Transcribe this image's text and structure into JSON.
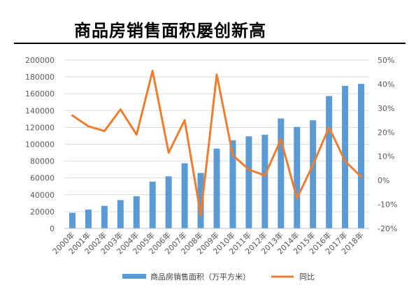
{
  "header": {
    "title": "商品房销售面积屡创新高"
  },
  "colors": {
    "bar": "#5B9BD5",
    "line": "#ED7D31",
    "grid": "#D9D9D9",
    "axis": "#BFBFBF"
  },
  "chart_data": {
    "type": "bar",
    "categories": [
      "2000年",
      "2001年",
      "2002年",
      "2003年",
      "2004年",
      "2005年",
      "2006年",
      "2007年",
      "2008年",
      "2009年",
      "2010年",
      "2011年",
      "2012年",
      "2013年",
      "2014年",
      "2015年",
      "2016年",
      "2017年",
      "2018年"
    ],
    "series": [
      {
        "name": "商品房销售面积（万平方米）",
        "type": "bar",
        "axis": "left",
        "values": [
          18600,
          22400,
          26800,
          33700,
          38200,
          55500,
          61900,
          77400,
          65900,
          94800,
          104800,
          109400,
          111300,
          130600,
          120600,
          128500,
          157300,
          169400,
          171700
        ]
      },
      {
        "name": "同比",
        "type": "line",
        "axis": "right",
        "unit": "%",
        "values": [
          27.0,
          22.5,
          20.5,
          29.5,
          19.0,
          45.5,
          11.5,
          25.0,
          -14.5,
          44.0,
          10.5,
          4.5,
          2.0,
          17.0,
          -7.5,
          6.5,
          22.0,
          8.0,
          1.5
        ]
      }
    ],
    "y_left": {
      "min": 0,
      "max": 200000,
      "step": 20000,
      "ticks": [
        "0",
        "20000",
        "40000",
        "60000",
        "80000",
        "100000",
        "120000",
        "140000",
        "160000",
        "180000",
        "200000"
      ]
    },
    "y_right": {
      "min": -20,
      "max": 50,
      "step": 10,
      "ticks": [
        "-20%",
        "-10%",
        "0%",
        "10%",
        "20%",
        "30%",
        "40%",
        "50%"
      ]
    },
    "grid": true,
    "legend": {
      "placement": "bottom"
    },
    "xlabel": "",
    "ylabel": ""
  }
}
